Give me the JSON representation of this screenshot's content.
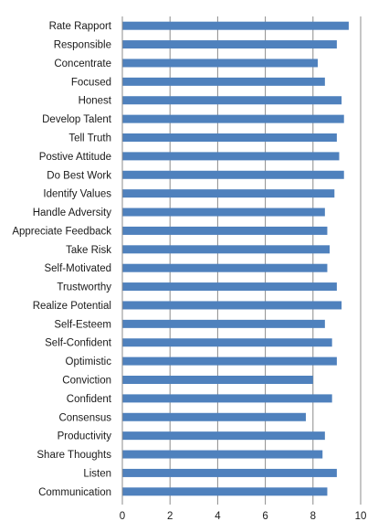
{
  "chart_data": {
    "type": "bar",
    "orientation": "horizontal",
    "categories": [
      "Rate Rapport",
      "Responsible",
      "Concentrate",
      "Focused",
      "Honest",
      "Develop Talent",
      "Tell Truth",
      "Postive Attitude",
      "Do Best Work",
      "Identify Values",
      "Handle Adversity",
      "Appreciate Feedback",
      "Take Risk",
      "Self-Motivated",
      "Trustworthy",
      "Realize Potential",
      "Self-Esteem",
      "Self-Confident",
      "Optimistic",
      "Conviction",
      "Confident",
      "Consensus",
      "Productivity",
      "Share Thoughts",
      "Listen",
      "Communication"
    ],
    "values": [
      9.5,
      9.0,
      8.2,
      8.5,
      9.2,
      9.3,
      9.0,
      9.1,
      9.3,
      8.9,
      8.5,
      8.6,
      8.7,
      8.6,
      9.0,
      9.2,
      8.5,
      8.8,
      9.0,
      8.0,
      8.8,
      7.7,
      8.5,
      8.4,
      9.0,
      8.6
    ],
    "xlim": [
      0,
      10
    ],
    "xticks": [
      "0",
      "2",
      "4",
      "6",
      "8",
      "10"
    ],
    "grid": true,
    "bar_color": "#4f81bd",
    "title": "",
    "xlabel": "",
    "ylabel": ""
  }
}
